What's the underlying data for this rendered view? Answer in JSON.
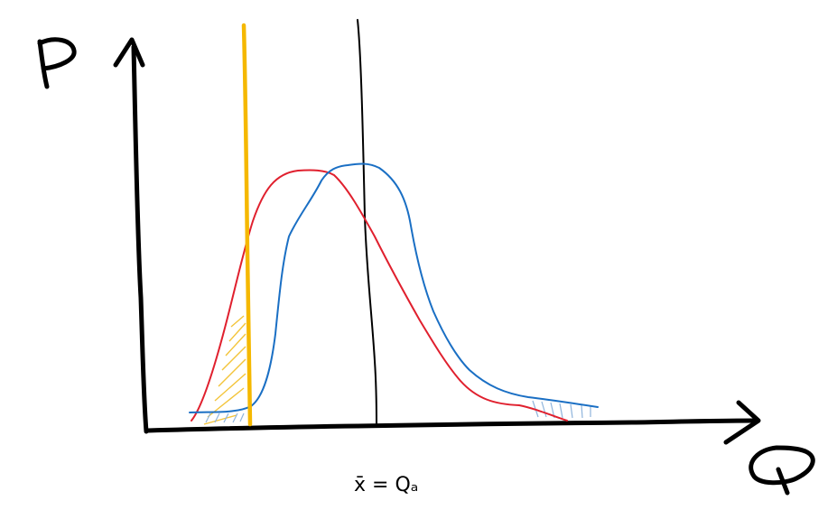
{
  "labels": {
    "y_axis": "P",
    "x_axis": "Q",
    "mean_label": "x̄ = Qₐ"
  },
  "colors": {
    "axes": "#000000",
    "red_curve": "#e0202e",
    "blue_curve": "#1a6fc4",
    "yellow_line": "#f5b800",
    "yellow_hatch": "#f3c43a",
    "blue_hatch": "#8fb4dc"
  }
}
